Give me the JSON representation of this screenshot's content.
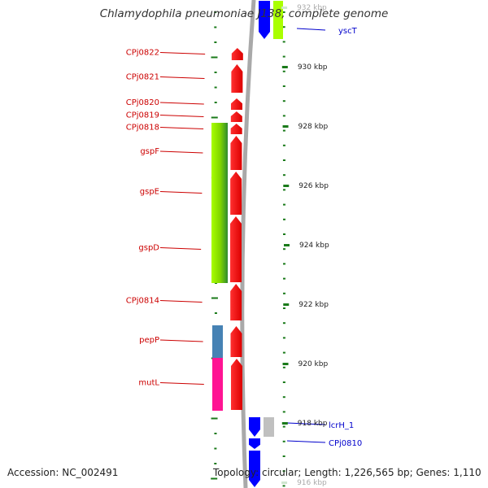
{
  "title": "Chlamydophila pneumoniae J138, complete genome",
  "footer": {
    "accession": "Accession: NC_002491",
    "topology": "Topology: circular; Length: 1,226,565 bp; Genes: 1,110"
  },
  "colors": {
    "forward_gene": "#ff0000",
    "reverse_gene": "#0000ff",
    "forward_label": "#cc0000",
    "reverse_label": "#0000cc",
    "backbone": "#a9a9a9",
    "tick": "#1a7a1a",
    "cog_green_light": "#aaff00",
    "cog_green_dark": "#2e8b2e",
    "cog_steelblue": "#4682b4",
    "cog_pink": "#ff1493",
    "cog_grey": "#c0c0c0"
  },
  "scale_ticks": [
    {
      "label": "932 kbp",
      "kbp": 932,
      "faded": true
    },
    {
      "label": "930 kbp",
      "kbp": 930
    },
    {
      "label": "928 kbp",
      "kbp": 928
    },
    {
      "label": "926 kbp",
      "kbp": 926
    },
    {
      "label": "924 kbp",
      "kbp": 924
    },
    {
      "label": "922 kbp",
      "kbp": 922
    },
    {
      "label": "920 kbp",
      "kbp": 920
    },
    {
      "label": "918 kbp",
      "kbp": 918
    },
    {
      "label": "916 kbp",
      "kbp": 916,
      "faded": true
    }
  ],
  "forward_genes": [
    {
      "label": "CPj0822",
      "y1": 58,
      "y2": 75,
      "cog": null
    },
    {
      "label": "CPj0821",
      "y1": 78,
      "y2": 115,
      "cog": null
    },
    {
      "label": "CPj0820",
      "y1": 120,
      "y2": 136,
      "cog": null
    },
    {
      "label": "CPj0819",
      "y1": 136,
      "y2": 151,
      "cog": null
    },
    {
      "label": "CPj0818",
      "y1": 151,
      "y2": 166,
      "cog": "green"
    },
    {
      "label": "gspF",
      "y1": 166,
      "y2": 210,
      "cog": "green"
    },
    {
      "label": "gspE",
      "y1": 210,
      "y2": 265,
      "cog": "green"
    },
    {
      "label": "gspD",
      "y1": 265,
      "y2": 348,
      "cog": "green"
    },
    {
      "label": "CPj0814",
      "y1": 348,
      "y2": 395,
      "cog": null
    },
    {
      "label": "pepP",
      "y1": 400,
      "y2": 440,
      "cog": "steelblue"
    },
    {
      "label": "mutL",
      "y1": 440,
      "y2": 505,
      "cog": "pink"
    }
  ],
  "reverse_genes": [
    {
      "label": "yscT",
      "y1": 0,
      "y2": 49,
      "cog": "green_light"
    },
    {
      "label": "lcrH_1",
      "y1": 512,
      "y2": 538,
      "cog": "grey"
    },
    {
      "label": "CPj0810",
      "y1": 538,
      "y2": 553,
      "cog": null
    },
    {
      "label": "",
      "y1": 553,
      "y2": 600,
      "cog": null
    }
  ]
}
